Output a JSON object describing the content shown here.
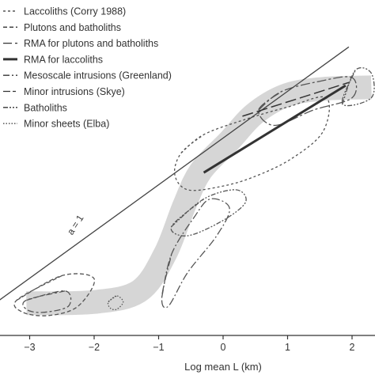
{
  "chart_data": {
    "type": "line",
    "xlabel": "Log mean L (km)",
    "ylabel": "",
    "xlim": [
      -3.6,
      2.35
    ],
    "ylim": [
      -0.35,
      4.4
    ],
    "x_ticks": [
      -3,
      -2,
      -1,
      0,
      1,
      2
    ],
    "grid": false,
    "legend_position": "top-left",
    "legend": [
      {
        "label": "Laccoliths (Corry 1988)",
        "style": "short-dash"
      },
      {
        "label": "Plutons and batholiths",
        "style": "dash"
      },
      {
        "label": "RMA for plutons and batholiths",
        "style": "long-dash"
      },
      {
        "label": "RMA for laccoliths",
        "style": "thick-solid"
      },
      {
        "label": "Mesoscale intrusions (Greenland)",
        "style": "dash-dot"
      },
      {
        "label": "Minor intrusions (Skye)",
        "style": "long-short"
      },
      {
        "label": "Batholiths",
        "style": "dash-dot-dot"
      },
      {
        "label": "Minor sheets (Elba)",
        "style": "dotted"
      }
    ],
    "reference_line": {
      "label": "a = 1",
      "points": [
        [
          -3.6,
          0.05
        ],
        [
          1.95,
          4.28
        ]
      ]
    },
    "band_centerline": [
      [
        -3.05,
        0.1
      ],
      [
        -2.0,
        0.12
      ],
      [
        -1.3,
        0.3
      ],
      [
        -0.9,
        0.9
      ],
      [
        -0.6,
        1.7
      ],
      [
        -0.35,
        2.25
      ],
      [
        0.1,
        2.75
      ],
      [
        0.5,
        3.2
      ],
      [
        1.0,
        3.5
      ],
      [
        1.6,
        3.6
      ],
      [
        2.3,
        3.62
      ]
    ],
    "series": [
      {
        "name": "RMA for laccoliths",
        "x": [
          -0.3,
          1.9
        ],
        "y": [
          2.23,
          3.65
        ]
      },
      {
        "name": "RMA for plutons and batholiths",
        "x": [
          0.3,
          1.95
        ],
        "y": [
          3.15,
          3.7
        ]
      }
    ]
  }
}
